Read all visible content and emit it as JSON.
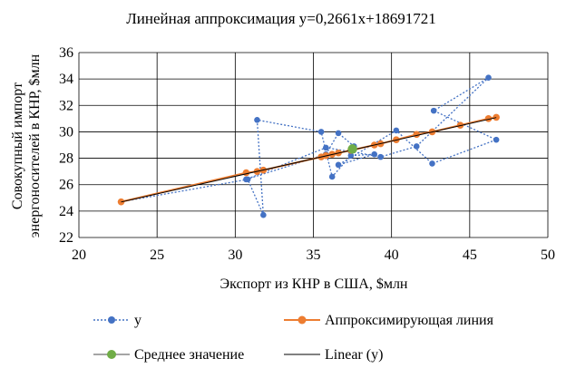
{
  "chart_data": {
    "type": "scatter",
    "title": "Линейная  аппроксимация  y=0,2661x+18691721",
    "xlabel": "Экспорт из КНР в США, $млн",
    "ylabel_lines": [
      "Совокупный импорт",
      "энергоносителей в КНР, $млн"
    ],
    "xlim": [
      20,
      50
    ],
    "ylim": [
      22,
      36
    ],
    "x_ticks": [
      20,
      25,
      30,
      35,
      40,
      45,
      50
    ],
    "y_ticks": [
      22,
      24,
      26,
      28,
      30,
      32,
      34,
      36
    ],
    "grid": true,
    "legend_position": "bottom",
    "colors": {
      "y": "#4472C4",
      "approx": "#ED7D31",
      "mean": "#70AD47",
      "linear": "#000000",
      "grid": "#000000"
    },
    "series": [
      {
        "name": "y",
        "style": "dotted-line-markers",
        "x": [
          22.7,
          30.8,
          31.8,
          31.4,
          35.5,
          36.2,
          37.4,
          38.9,
          36.6,
          40.3,
          42.6,
          46.7,
          42.7,
          46.2,
          41.6,
          39.3,
          37.4,
          35.8,
          30.7,
          35.8,
          36.6,
          37.6
        ],
        "y": [
          24.7,
          26.4,
          23.7,
          30.9,
          30.0,
          26.6,
          28.2,
          28.3,
          27.5,
          30.1,
          27.6,
          29.4,
          31.6,
          34.1,
          28.9,
          28.1,
          28.5,
          28.8,
          26.4,
          28.3,
          29.9,
          28.9
        ]
      },
      {
        "name": "Аппроксимирующая линия",
        "style": "line-markers",
        "x": [
          22.7,
          30.7,
          31.4,
          31.8,
          35.5,
          35.8,
          36.2,
          36.6,
          37.4,
          38.9,
          39.3,
          40.3,
          41.6,
          42.6,
          44.4,
          46.2,
          46.7
        ],
        "y": [
          24.7,
          26.9,
          27.0,
          27.1,
          28.1,
          28.2,
          28.3,
          28.4,
          28.6,
          29.0,
          29.1,
          29.4,
          29.8,
          30.0,
          30.5,
          31.0,
          31.1
        ]
      },
      {
        "name": "Среднее значение",
        "style": "marker",
        "x": [
          37.5
        ],
        "y": [
          28.7
        ]
      },
      {
        "name": "Linear  (y)",
        "style": "solid-line",
        "x": [
          22.7,
          46.7
        ],
        "y": [
          24.69,
          31.08
        ]
      }
    ]
  }
}
